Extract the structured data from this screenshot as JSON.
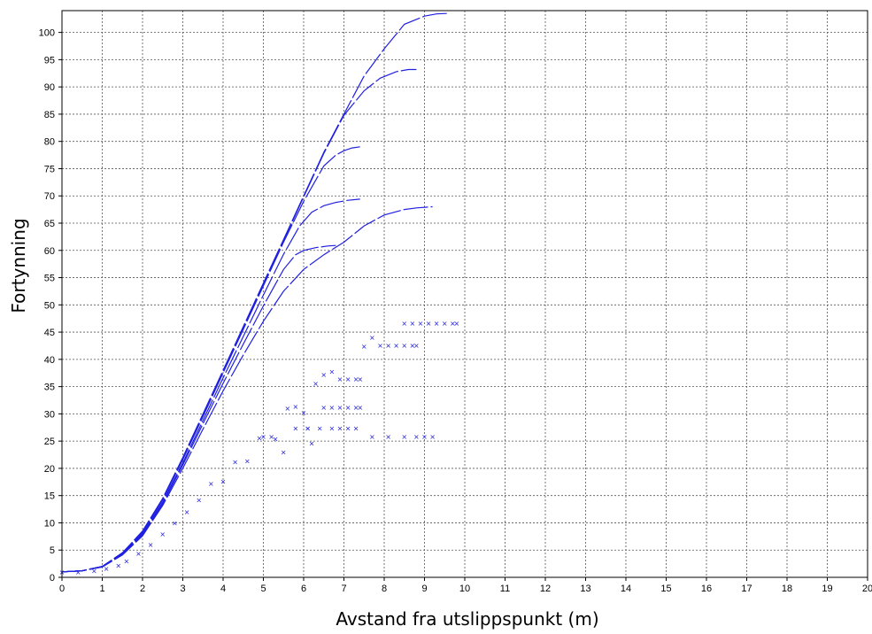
{
  "chart_data": {
    "type": "line",
    "xlabel": "Avstand fra utslippspunkt (m)",
    "ylabel": "Fortynning",
    "xlim": [
      0,
      20
    ],
    "ylim": [
      0,
      104
    ],
    "xticks": [
      0,
      1,
      2,
      3,
      4,
      5,
      6,
      7,
      8,
      9,
      10,
      11,
      12,
      13,
      14,
      15,
      16,
      17,
      18,
      19,
      20
    ],
    "yticks": [
      0,
      5,
      10,
      15,
      20,
      25,
      30,
      35,
      40,
      45,
      50,
      55,
      60,
      65,
      70,
      75,
      80,
      85,
      90,
      95,
      100
    ],
    "grid": true,
    "line_color": "#2020e0",
    "series": [
      {
        "style": "line",
        "x": [
          0,
          0.5,
          1,
          1.5,
          2,
          2.5,
          3,
          3.5,
          4,
          4.5,
          5,
          5.5,
          6,
          6.5,
          7,
          7.5,
          8,
          8.5,
          9,
          9.3,
          9.6
        ],
        "y": [
          1,
          1.2,
          2,
          4.5,
          8.5,
          14.5,
          22,
          30,
          38,
          46,
          54,
          62,
          70,
          78,
          85,
          92,
          97,
          101.5,
          103,
          103.4,
          103.5
        ]
      },
      {
        "style": "line",
        "x": [
          0,
          0.5,
          1,
          1.5,
          2,
          2.5,
          3,
          3.5,
          4,
          4.5,
          5,
          5.5,
          6,
          6.5,
          7,
          7.5,
          7.9,
          8.3,
          8.6,
          8.8
        ],
        "y": [
          1,
          1.2,
          2,
          4.5,
          8.4,
          14.4,
          21.8,
          29.8,
          37.8,
          45.8,
          53.8,
          61.8,
          69.8,
          77.8,
          84.8,
          89.3,
          91.6,
          92.8,
          93.2,
          93.2
        ]
      },
      {
        "style": "line",
        "x": [
          0,
          0.5,
          1,
          1.5,
          2,
          2.5,
          3,
          3.5,
          4,
          4.5,
          5,
          5.5,
          6,
          6.5,
          6.8,
          7,
          7.2,
          7.4
        ],
        "y": [
          1,
          1.2,
          2,
          4.4,
          8.2,
          14.2,
          21.6,
          29.5,
          37.5,
          45.5,
          53.5,
          61.5,
          69,
          75.5,
          77.5,
          78.3,
          78.8,
          79
        ]
      },
      {
        "style": "line",
        "x": [
          0,
          0.5,
          1,
          1.5,
          2,
          2.5,
          3,
          3.5,
          4,
          4.5,
          5,
          5.5,
          5.9,
          6.2,
          6.5,
          6.8,
          7.1,
          7.4
        ],
        "y": [
          1,
          1.2,
          2,
          4.3,
          8,
          13.8,
          21,
          28.8,
          36.6,
          44.2,
          51.8,
          59.3,
          64.5,
          67,
          68.2,
          68.8,
          69.2,
          69.4
        ]
      },
      {
        "style": "line",
        "x": [
          0,
          0.5,
          1,
          1.5,
          2,
          2.5,
          3,
          3.5,
          4,
          4.5,
          5,
          5.5,
          5.8,
          6,
          6.3,
          6.6,
          6.8
        ],
        "y": [
          1,
          1.2,
          1.9,
          4.2,
          7.8,
          13.5,
          20.6,
          28.2,
          35.6,
          42.8,
          49.8,
          56.5,
          59.2,
          60,
          60.5,
          60.8,
          60.9
        ]
      },
      {
        "style": "line",
        "x": [
          0,
          0.5,
          1,
          1.5,
          2,
          2.5,
          3,
          3.5,
          4,
          4.5,
          5,
          5.5,
          6,
          6.5,
          7,
          7.5,
          8,
          8.5,
          8.8,
          9.2
        ],
        "y": [
          1,
          1.2,
          1.9,
          4.1,
          7.6,
          13.2,
          20,
          27.2,
          34.2,
          40.8,
          47,
          52.5,
          56.5,
          59.2,
          61.5,
          64.5,
          66.5,
          67.5,
          67.8,
          68
        ]
      },
      {
        "style": "markers",
        "x": [
          0,
          0.4,
          0.8,
          1.1,
          1.4,
          1.6,
          1.9,
          2.2,
          2.5,
          2.8,
          3.1,
          3.4,
          3.7,
          4.0,
          4.3,
          4.6,
          4.9,
          5.2,
          5.5,
          5.8,
          6.1,
          6.4,
          6.7,
          6.9,
          7.1,
          7.3,
          7.7,
          8.1,
          8.5,
          8.8,
          9.0,
          9.2
        ],
        "y": [
          1,
          1,
          1.2,
          1.6,
          2.2,
          3,
          4.4,
          6,
          8,
          10,
          12,
          14.2,
          17.2,
          17.6,
          21.2,
          21.4,
          25.6,
          25.8,
          23,
          27.4,
          27.4,
          27.4,
          27.4,
          27.4,
          27.4,
          27.4,
          25.8,
          25.8,
          25.8,
          25.8,
          25.8,
          25.8
        ]
      },
      {
        "style": "markers",
        "x": [
          5.0,
          5.3,
          5.6,
          5.8,
          6.0,
          6.2,
          6.5,
          6.7,
          6.9,
          7.1,
          7.3,
          7.4
        ],
        "y": [
          25.8,
          25.4,
          31,
          31.4,
          30.2,
          24.6,
          31.2,
          31.2,
          31.2,
          31.2,
          31.2,
          31.2
        ]
      },
      {
        "style": "markers",
        "x": [
          6.1,
          6.3,
          6.5,
          6.7,
          6.9,
          7.1,
          7.3,
          7.4
        ],
        "y": [
          27.4,
          35.6,
          37.2,
          37.8,
          36.4,
          36.4,
          36.4,
          36.4
        ]
      },
      {
        "style": "markers",
        "x": [
          7.5,
          7.7,
          7.9,
          8.1,
          8.3,
          8.5,
          8.7,
          8.8
        ],
        "y": [
          42.4,
          44,
          42.6,
          42.6,
          42.6,
          42.6,
          42.6,
          42.6
        ]
      },
      {
        "style": "markers",
        "x": [
          8.5,
          8.7,
          8.9,
          9.1,
          9.3,
          9.5,
          9.7,
          9.8
        ],
        "y": [
          46.6,
          46.6,
          46.6,
          46.6,
          46.6,
          46.6,
          46.6,
          46.6
        ]
      }
    ]
  }
}
